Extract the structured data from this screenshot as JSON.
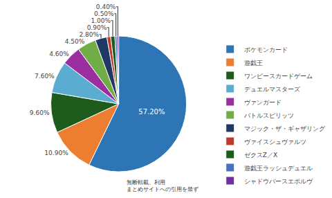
{
  "chart_data": {
    "type": "pie",
    "categories": [
      "ポケモンカード",
      "遊戯王",
      "ワンピースカードゲーム",
      "デュエルマスターズ",
      "ヴァンガード",
      "バトルスピリッツ",
      "マジック・ザ・ギャザリング",
      "ヴァイスシュヴァルツ",
      "ゼクスZ／X",
      "遊戯王ラッシュデュエル",
      "シャドウバースエボルヴ"
    ],
    "values": [
      57.2,
      10.9,
      9.6,
      7.6,
      4.6,
      4.5,
      2.8,
      0.9,
      1.0,
      0.5,
      0.4
    ],
    "value_labels": [
      "57.20%",
      "10.90%",
      "9.60%",
      "7.60%",
      "4.60%",
      "4.50%",
      "2.80%",
      "0.90%",
      "1.00%",
      "0.50%",
      "0.40%"
    ],
    "colors": [
      "#2e75b6",
      "#ed7d31",
      "#1e5c1e",
      "#5bacd1",
      "#9b2fa0",
      "#70ad47",
      "#203864",
      "#c0392b",
      "#1a5c1a",
      "#4472c4",
      "#7030a0"
    ],
    "data_labels": true,
    "legend": "right",
    "annotations": [
      "無断転載、利用",
      "まとめサイトへの引用を禁ず"
    ]
  }
}
